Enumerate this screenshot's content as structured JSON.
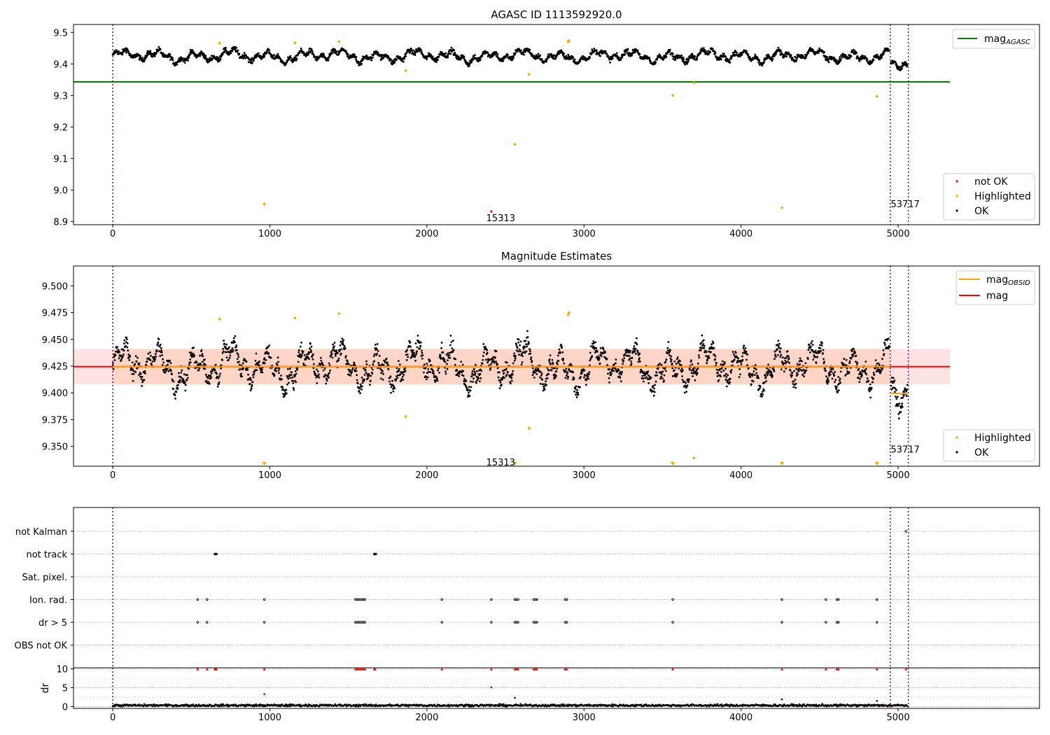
{
  "chart_data": [
    {
      "type": "scatter",
      "title": "AGASC ID 1113592920.0",
      "xlabel": "",
      "ylabel": "",
      "xlim": [
        -250,
        5900
      ],
      "ylim": [
        8.89,
        9.525
      ],
      "x_ticks": [
        0,
        1000,
        2000,
        3000,
        4000,
        5000
      ],
      "y_ticks": [
        8.9,
        9.0,
        9.1,
        9.2,
        9.3,
        9.4,
        9.5
      ],
      "grid": false,
      "legends": [
        {
          "placement": "top-right",
          "entries": [
            {
              "label": "mag",
              "subscript": "AGASC",
              "color": "#008000",
              "kind": "line"
            }
          ]
        },
        {
          "placement": "lower-right",
          "entries": [
            {
              "label": "not OK",
              "color": "#ff0000",
              "kind": "marker"
            },
            {
              "label": "Highlighted",
              "color": "#ffa500",
              "kind": "marker"
            },
            {
              "label": "OK",
              "color": "#000000",
              "kind": "marker"
            }
          ]
        }
      ],
      "reference_lines": [
        {
          "name": "mag_AGASC",
          "y": 9.343,
          "x_range": [
            -250,
            5330
          ],
          "color": "#008000"
        }
      ],
      "vertical_lines": [
        0,
        4950,
        5065
      ],
      "annotations": [
        {
          "text": "15313",
          "x": 2470,
          "y": 8.912
        },
        {
          "text": "53717",
          "x": 5045,
          "y": 8.957
        }
      ],
      "series": [
        {
          "name": "OK",
          "color": "#000000",
          "ok_segments": [
            {
              "x": [
                0,
                4945
              ],
              "mean": 9.425,
              "spread": 0.02
            },
            {
              "x": [
                4955,
                5060
              ],
              "mean": 9.398,
              "spread": 0.012
            }
          ]
        },
        {
          "name": "Highlighted",
          "color": "#ffa500",
          "points": [
            [
              680,
              9.466
            ],
            [
              1160,
              9.467
            ],
            [
              1440,
              9.471
            ],
            [
              1865,
              9.379
            ],
            [
              2900,
              9.471
            ],
            [
              2905,
              9.474
            ],
            [
              2650,
              9.367
            ],
            [
              3565,
              9.3
            ],
            [
              3700,
              9.34
            ],
            [
              4865,
              9.297
            ],
            [
              965,
              8.955
            ],
            [
              2560,
              9.145
            ],
            [
              4260,
              8.944
            ]
          ]
        },
        {
          "name": "not OK",
          "color": "#ff0000",
          "points": [
            [
              2410,
              8.932
            ]
          ]
        }
      ]
    },
    {
      "type": "scatter",
      "title": "Magnitude Estimates",
      "xlabel": "",
      "ylabel": "",
      "xlim": [
        -250,
        5900
      ],
      "ylim": [
        9.3315,
        9.5185
      ],
      "x_ticks": [
        0,
        1000,
        2000,
        3000,
        4000,
        5000
      ],
      "y_ticks": [
        9.35,
        9.375,
        9.4,
        9.425,
        9.45,
        9.475,
        9.5
      ],
      "grid": false,
      "legends": [
        {
          "placement": "top-right",
          "entries": [
            {
              "label": "mag",
              "subscript": "OBSID",
              "color": "#ffa500",
              "kind": "line"
            },
            {
              "label": "mag",
              "color": "#ff0000",
              "kind": "line"
            }
          ]
        },
        {
          "placement": "lower-right",
          "entries": [
            {
              "label": "Highlighted",
              "color": "#ffa500",
              "kind": "marker"
            },
            {
              "label": "OK",
              "color": "#000000",
              "kind": "marker"
            }
          ]
        }
      ],
      "mag_line": {
        "y": 9.4245,
        "x_range": [
          -250,
          5330
        ],
        "color": "#ff0000"
      },
      "mag_band": {
        "y_range": [
          9.408,
          9.441
        ],
        "x_range": [
          -250,
          5330
        ]
      },
      "obsid_mag_lines": [
        {
          "y": 9.4245,
          "x_range": [
            0,
            4945
          ]
        },
        {
          "y": 9.3995,
          "x_range": [
            4955,
            5060
          ]
        }
      ],
      "vertical_lines": [
        0,
        4950,
        5065
      ],
      "annotations": [
        {
          "text": "15313",
          "x": 2470,
          "y": 9.3355
        },
        {
          "text": "53717",
          "x": 5045,
          "y": 9.3475
        }
      ],
      "series": [
        {
          "name": "OK",
          "color": "#000000"
        },
        {
          "name": "Highlighted",
          "color": "#ffa500",
          "points": [
            [
              680,
              9.469
            ],
            [
              1160,
              9.47
            ],
            [
              1440,
              9.474
            ],
            [
              1865,
              9.378
            ],
            [
              2900,
              9.473
            ],
            [
              2905,
              9.475
            ],
            [
              2650,
              9.367
            ],
            [
              3700,
              9.339
            ]
          ]
        },
        {
          "name": "Highlighted (off-scale, below axis)",
          "color": "#ffa500",
          "marker": "triangle-down",
          "x": [
            965,
            2560,
            3565,
            4260,
            4865
          ]
        }
      ]
    },
    {
      "type": "scatter",
      "title": "",
      "xlabel": "",
      "ylabel": "",
      "xlim": [
        -250,
        5900
      ],
      "flags": [
        "not Kalman",
        "not track",
        "Sat. pixel.",
        "Ion. rad.",
        "dr > 5",
        "OBS not OK"
      ],
      "vertical_lines": [
        0,
        4950,
        5065
      ],
      "grid": true,
      "flag_points": {
        "not Kalman": [
          5050
        ],
        "not track": [
          650,
          655,
          660,
          1665,
          1670,
          1675
        ],
        "Sat. pixel.": [],
        "Ion. rad.": [
          540,
          600,
          965,
          1545,
          1555,
          1565,
          1575,
          1585,
          1595,
          1605,
          2095,
          2410,
          2560,
          2570,
          2580,
          2680,
          2690,
          2700,
          2880,
          2890,
          3565,
          4260,
          4540,
          4610,
          4620,
          4865
        ],
        "dr > 5": [
          540,
          600,
          965,
          1545,
          1555,
          1565,
          1575,
          1585,
          1595,
          1605,
          2095,
          2410,
          2560,
          2570,
          2580,
          2680,
          2690,
          2700,
          2880,
          2890,
          3565,
          4260,
          4540,
          4610,
          4620,
          4865
        ],
        "OBS not OK": []
      }
    },
    {
      "type": "scatter",
      "title": "",
      "xlabel": "",
      "ylabel": "dr",
      "xlim": [
        -250,
        5900
      ],
      "ylim": [
        -0.5,
        10.3
      ],
      "y_ticks": [
        0,
        5,
        10
      ],
      "x_ticks": [
        0,
        1000,
        2000,
        3000,
        4000,
        5000
      ],
      "vertical_lines": [
        0,
        4950,
        5065
      ],
      "series": [
        {
          "name": "dr",
          "color": "#000000",
          "baseline": 0.3
        },
        {
          "name": "dr (clipped)",
          "color": "#ff0000",
          "marker": "triangle-up",
          "y": 10,
          "x": [
            540,
            600,
            650,
            655,
            660,
            965,
            1545,
            1555,
            1565,
            1575,
            1585,
            1595,
            1605,
            1665,
            1670,
            2095,
            2410,
            2560,
            2570,
            2580,
            2680,
            2690,
            2700,
            2880,
            2890,
            3565,
            4260,
            4540,
            4610,
            4620,
            4865,
            5050
          ]
        },
        {
          "name": "dr (red, in range)",
          "color": "#ff0000",
          "points": [
            [
              965,
              3.3
            ],
            [
              2410,
              5.1
            ]
          ]
        },
        {
          "name": "dr (black outliers)",
          "color": "#000000",
          "points": [
            [
              2560,
              2.3
            ],
            [
              4260,
              1.9
            ],
            [
              4865,
              1.5
            ]
          ]
        }
      ]
    }
  ]
}
